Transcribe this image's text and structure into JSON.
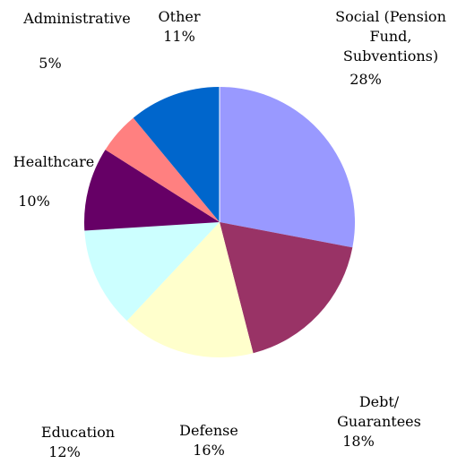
{
  "chart_data": {
    "type": "pie",
    "title": "",
    "legend": "none",
    "slices": [
      {
        "lines": [
          "Social (Pension",
          "Fund,",
          "Subventions)"
        ],
        "value": 28,
        "value_label": "28%",
        "color": "#9999ff"
      },
      {
        "lines": [
          "Debt/",
          "Guarantees"
        ],
        "value": 18,
        "value_label": "18%",
        "color": "#993366"
      },
      {
        "lines": [
          "Defense"
        ],
        "value": 16,
        "value_label": "16%",
        "color": "#ffffcc"
      },
      {
        "lines": [
          "Education"
        ],
        "value": 12,
        "value_label": "12%",
        "color": "#ccffff"
      },
      {
        "lines": [
          "Healthcare"
        ],
        "value": 10,
        "value_label": "10%",
        "color": "#660066"
      },
      {
        "lines": [
          "Administrative"
        ],
        "value": 5,
        "value_label": "5%",
        "color": "#ff8080"
      },
      {
        "lines": [
          "Other"
        ],
        "value": 11,
        "value_label": "11%",
        "color": "#0066cc"
      }
    ]
  }
}
